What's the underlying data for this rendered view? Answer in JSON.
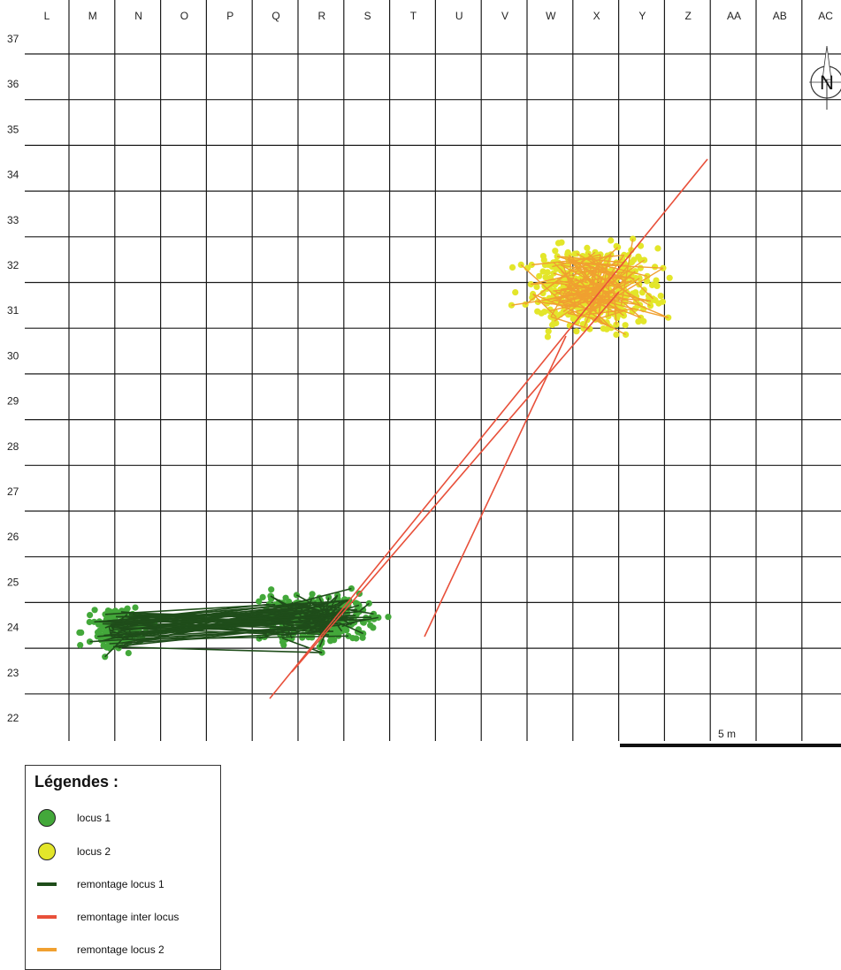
{
  "map": {
    "columns": [
      "L",
      "M",
      "N",
      "O",
      "P",
      "Q",
      "R",
      "S",
      "T",
      "U",
      "V",
      "W",
      "X",
      "Y",
      "Z",
      "AA",
      "AB",
      "AC"
    ],
    "rows": [
      "37",
      "36",
      "35",
      "34",
      "33",
      "32",
      "31",
      "30",
      "29",
      "28",
      "27",
      "26",
      "25",
      "24",
      "23",
      "22"
    ],
    "scale_bar": {
      "label": "5 m",
      "length_m": 5
    },
    "north_label": "N"
  },
  "legend": {
    "title": "Légendes :",
    "items": [
      {
        "label": "locus 1",
        "kind": "dot",
        "color": "#43a83a"
      },
      {
        "label": "locus 2",
        "kind": "dot",
        "color": "#e3e62a"
      },
      {
        "label": "remontage locus 1",
        "kind": "line",
        "color": "#1f4d1a"
      },
      {
        "label": "remontage inter locus",
        "kind": "line",
        "color": "#e8503a"
      },
      {
        "label": "remontage locus 2",
        "kind": "line",
        "color": "#f0a030"
      }
    ]
  },
  "colors": {
    "grid": "#1b1b1b",
    "locus1_fill": "#43a83a",
    "locus2_fill": "#e3e62a",
    "refit_locus1": "#1f4d1a",
    "refit_inter": "#e8503a",
    "refit_locus2": "#f0a030"
  }
}
